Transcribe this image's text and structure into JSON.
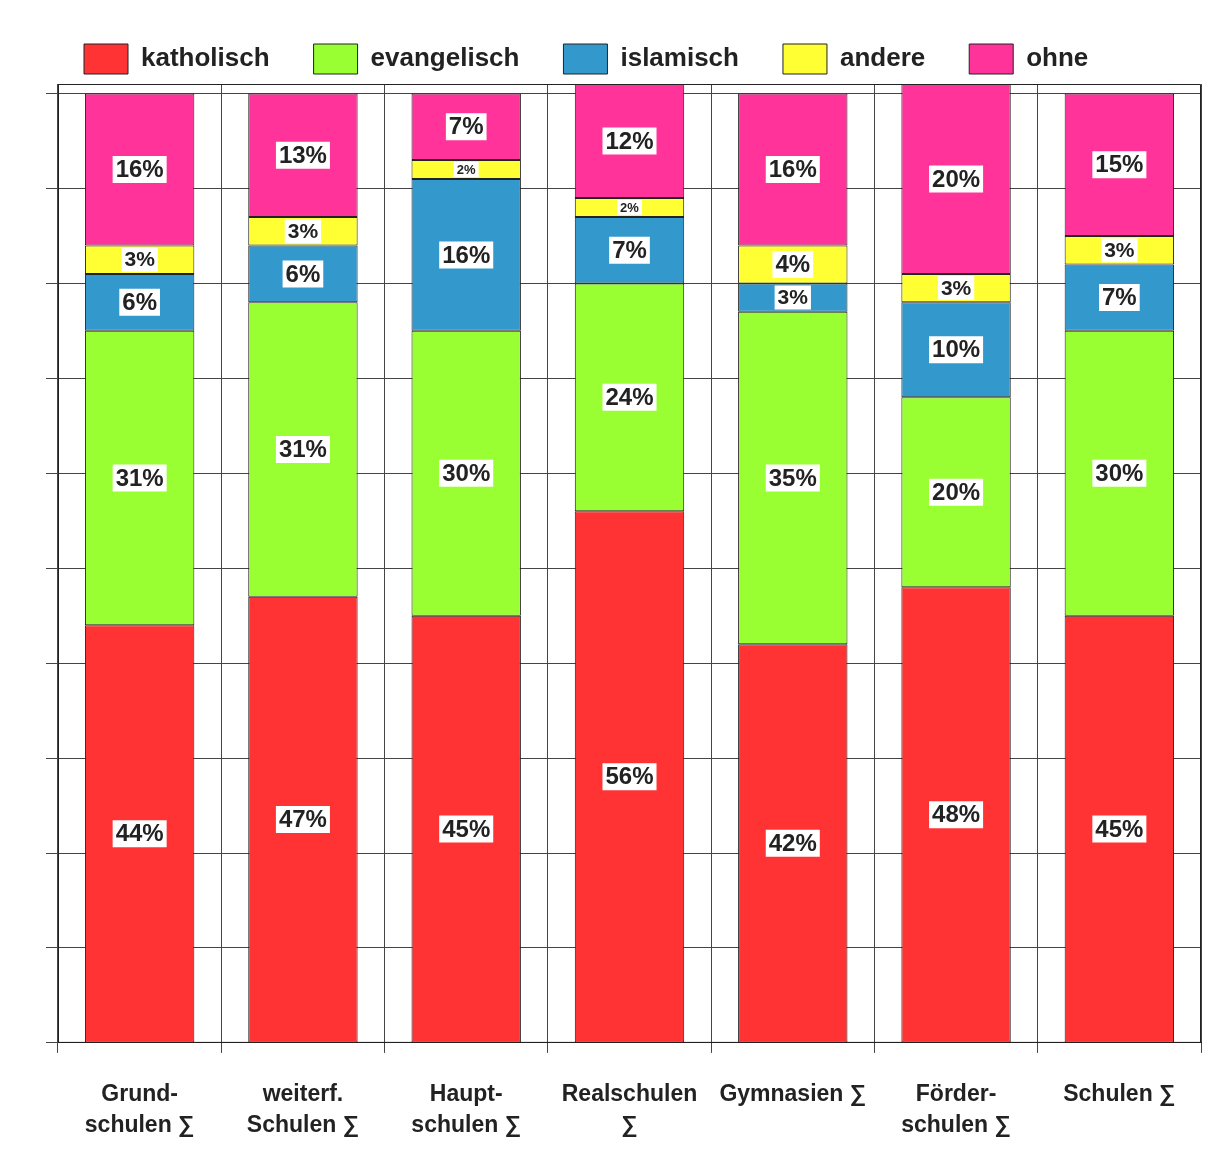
{
  "chart_data": {
    "type": "bar",
    "stacked": true,
    "categories": [
      "Grund-\nschulen ∑",
      "weiterf.\nSchulen ∑",
      "Haupt-\nschulen ∑",
      "Realschulen\n∑",
      "Gymnasien ∑",
      "Förder-\nschulen ∑",
      "Schulen ∑"
    ],
    "series": [
      {
        "name": "katholisch",
        "color": "#ff3333",
        "values": [
          44,
          47,
          45,
          56,
          42,
          48,
          45
        ],
        "value_labels": [
          "44%",
          "47%",
          "45%",
          "56%",
          "42%",
          "48%",
          "45%"
        ]
      },
      {
        "name": "evangelisch",
        "color": "#99ff33",
        "values": [
          31,
          31,
          30,
          24,
          35,
          20,
          30
        ],
        "value_labels": [
          "31%",
          "31%",
          "30%",
          "24%",
          "35%",
          "20%",
          "30%"
        ]
      },
      {
        "name": "islamisch",
        "color": "#3399cc",
        "values": [
          6,
          6,
          16,
          7,
          3,
          10,
          7
        ],
        "value_labels": [
          "6%",
          "6%",
          "16%",
          "7%",
          "3%",
          "10%",
          "7%"
        ]
      },
      {
        "name": "andere",
        "color": "#ffff33",
        "values": [
          3,
          3,
          2,
          2,
          4,
          3,
          3
        ],
        "value_labels": [
          "3%",
          "3%",
          "2%",
          "2%",
          "4%",
          "3%",
          "3%"
        ]
      },
      {
        "name": "ohne",
        "color": "#ff3399",
        "values": [
          16,
          13,
          7,
          12,
          16,
          20,
          15
        ],
        "value_labels": [
          "16%",
          "13%",
          "7%",
          "12%",
          "16%",
          "20%",
          "15%"
        ]
      }
    ],
    "ylim": [
      0,
      101
    ],
    "yticks": [
      {
        "value": 0,
        "label": null
      },
      {
        "value": 10,
        "label": null
      },
      {
        "value": 20,
        "label": null
      },
      {
        "value": 30,
        "label": null
      },
      {
        "value": 40,
        "label": null
      },
      {
        "value": 50,
        "label": null
      },
      {
        "value": 60,
        "label": null
      },
      {
        "value": 70,
        "label": null
      },
      {
        "value": 80,
        "label": null
      },
      {
        "value": 90,
        "label": null
      },
      {
        "value": 100,
        "label": null
      }
    ],
    "tick_labels": "x",
    "grid": true,
    "legend": "top"
  }
}
